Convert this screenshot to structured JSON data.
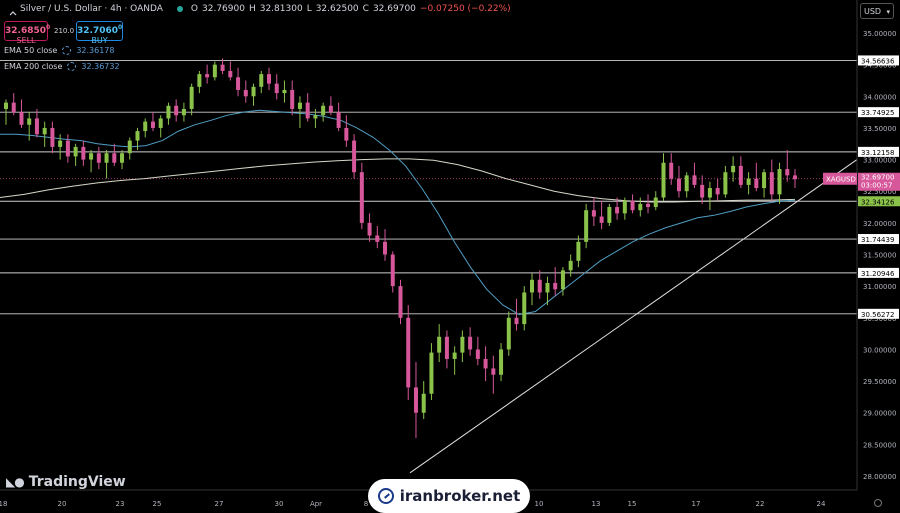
{
  "header": {
    "symbol": "Silver / U.S. Dollar · 4h · OANDA",
    "o_label": "O",
    "o": "32.76900",
    "h_label": "H",
    "h": "32.81300",
    "l_label": "L",
    "l": "32.62500",
    "c_label": "C",
    "c": "32.69700",
    "change": "−0.07250 (−0.22%)"
  },
  "trade": {
    "sell_price": "32.6850",
    "sell_sup": "0",
    "sell_label": "SELL",
    "spread": "210.0",
    "buy_price": "32.7060",
    "buy_sup": "0",
    "buy_label": "BUY"
  },
  "indicators": [
    {
      "label": "EMA 50 close",
      "value": "32.36178"
    },
    {
      "label": "EMA 200 close",
      "value": "32.36732"
    }
  ],
  "currency_select": "USD",
  "logo_text": "TradingView",
  "watermark": "iranbroker.net",
  "colors": {
    "background": "#000000",
    "up": "#8bc34a",
    "down": "#d6589a",
    "ema50": "#4f9ec4",
    "ema200": "#d8d8c8",
    "hline": "#d0d0d0",
    "price_tag": "#d6589a",
    "ema_tag": "#8bc34a"
  },
  "chart_data": {
    "type": "candlestick",
    "symbol": "XAGUSD",
    "timeframe": "4h",
    "ylim": [
      27.8,
      35.4
    ],
    "y_ticks": [
      "35.00000",
      "34.50000",
      "34.00000",
      "33.50000",
      "33.00000",
      "32.50000",
      "32.00000",
      "31.50000",
      "31.00000",
      "30.50000",
      "30.00000",
      "29.50000",
      "29.00000",
      "28.50000",
      "28.00000"
    ],
    "x_ticks": [
      "18",
      "20",
      "23",
      "25",
      "27",
      "30",
      "Apr",
      "8",
      "10",
      "13",
      "15",
      "17",
      "22",
      "24"
    ],
    "horizontal_levels": [
      "34.56636",
      "33.74925",
      "33.12158",
      "31.74439",
      "31.20946",
      "30.56272"
    ],
    "price_label": {
      "symbol": "XAGUSD",
      "value": "32.69700",
      "countdown": "03:00:57"
    },
    "ema_label": "32.34126",
    "candles": [
      [
        33.8,
        33.95,
        33.55,
        33.9
      ],
      [
        33.9,
        34.05,
        33.7,
        33.75
      ],
      [
        33.75,
        33.95,
        33.5,
        33.55
      ],
      [
        33.55,
        33.75,
        33.3,
        33.65
      ],
      [
        33.65,
        33.8,
        33.35,
        33.4
      ],
      [
        33.4,
        33.6,
        33.2,
        33.5
      ],
      [
        33.5,
        33.6,
        33.1,
        33.2
      ],
      [
        33.2,
        33.4,
        33.0,
        33.3
      ],
      [
        33.3,
        33.4,
        32.95,
        33.05
      ],
      [
        33.05,
        33.25,
        32.9,
        33.2
      ],
      [
        33.2,
        33.3,
        32.9,
        33.0
      ],
      [
        33.0,
        33.15,
        32.8,
        33.1
      ],
      [
        33.1,
        33.2,
        32.85,
        32.95
      ],
      [
        32.95,
        33.15,
        32.7,
        33.1
      ],
      [
        33.1,
        33.25,
        32.9,
        32.95
      ],
      [
        32.95,
        33.15,
        32.85,
        33.1
      ],
      [
        33.1,
        33.35,
        33.0,
        33.3
      ],
      [
        33.3,
        33.5,
        33.15,
        33.45
      ],
      [
        33.45,
        33.65,
        33.35,
        33.6
      ],
      [
        33.6,
        33.75,
        33.45,
        33.5
      ],
      [
        33.5,
        33.7,
        33.35,
        33.65
      ],
      [
        33.65,
        33.9,
        33.55,
        33.85
      ],
      [
        33.85,
        33.95,
        33.6,
        33.7
      ],
      [
        33.7,
        33.9,
        33.6,
        33.8
      ],
      [
        33.8,
        34.2,
        33.7,
        34.15
      ],
      [
        34.15,
        34.4,
        34.05,
        34.35
      ],
      [
        34.35,
        34.5,
        34.2,
        34.3
      ],
      [
        34.3,
        34.55,
        34.25,
        34.5
      ],
      [
        34.5,
        34.6,
        34.35,
        34.4
      ],
      [
        34.4,
        34.55,
        34.25,
        34.3
      ],
      [
        34.3,
        34.45,
        34.0,
        34.1
      ],
      [
        34.1,
        34.25,
        33.9,
        34.0
      ],
      [
        34.0,
        34.2,
        33.85,
        34.15
      ],
      [
        34.15,
        34.4,
        34.05,
        34.35
      ],
      [
        34.35,
        34.45,
        34.1,
        34.2
      ],
      [
        34.2,
        34.35,
        33.95,
        34.05
      ],
      [
        34.05,
        34.25,
        33.9,
        34.1
      ],
      [
        34.1,
        34.25,
        33.7,
        33.8
      ],
      [
        33.8,
        34.0,
        33.5,
        33.9
      ],
      [
        33.9,
        34.05,
        33.6,
        33.65
      ],
      [
        33.65,
        33.8,
        33.5,
        33.7
      ],
      [
        33.7,
        33.9,
        33.6,
        33.85
      ],
      [
        33.85,
        34.0,
        33.7,
        33.75
      ],
      [
        33.75,
        33.9,
        33.45,
        33.5
      ],
      [
        33.5,
        33.7,
        33.2,
        33.3
      ],
      [
        33.3,
        33.4,
        32.7,
        32.8
      ],
      [
        32.8,
        32.95,
        31.9,
        32.0
      ],
      [
        32.0,
        32.15,
        31.7,
        31.8
      ],
      [
        31.8,
        31.95,
        31.6,
        31.7
      ],
      [
        31.7,
        31.9,
        31.4,
        31.5
      ],
      [
        31.5,
        31.55,
        30.9,
        31.0
      ],
      [
        31.0,
        31.1,
        30.4,
        30.5
      ],
      [
        30.5,
        30.7,
        29.2,
        29.4
      ],
      [
        29.4,
        29.8,
        28.6,
        29.0
      ],
      [
        29.0,
        29.5,
        28.9,
        29.3
      ],
      [
        29.3,
        30.1,
        29.2,
        29.95
      ],
      [
        29.95,
        30.4,
        29.8,
        30.2
      ],
      [
        30.2,
        30.3,
        29.7,
        29.85
      ],
      [
        29.85,
        30.05,
        29.6,
        29.95
      ],
      [
        29.95,
        30.3,
        29.8,
        30.2
      ],
      [
        30.2,
        30.35,
        29.9,
        30.0
      ],
      [
        30.0,
        30.2,
        29.75,
        29.85
      ],
      [
        29.85,
        30.05,
        29.5,
        29.7
      ],
      [
        29.7,
        29.9,
        29.3,
        29.6
      ],
      [
        29.6,
        30.1,
        29.5,
        30.0
      ],
      [
        30.0,
        30.6,
        29.9,
        30.5
      ],
      [
        30.5,
        30.8,
        30.3,
        30.4
      ],
      [
        30.4,
        31.0,
        30.3,
        30.9
      ],
      [
        30.9,
        31.2,
        30.7,
        31.1
      ],
      [
        31.1,
        31.25,
        30.8,
        30.9
      ],
      [
        30.9,
        31.15,
        30.7,
        31.05
      ],
      [
        31.05,
        31.3,
        30.85,
        30.95
      ],
      [
        30.95,
        31.3,
        30.85,
        31.25
      ],
      [
        31.25,
        31.5,
        31.15,
        31.4
      ],
      [
        31.4,
        31.8,
        31.3,
        31.7
      ],
      [
        31.7,
        32.3,
        31.6,
        32.2
      ],
      [
        32.2,
        32.4,
        31.95,
        32.1
      ],
      [
        32.1,
        32.35,
        31.9,
        32.0
      ],
      [
        32.0,
        32.3,
        31.95,
        32.25
      ],
      [
        32.25,
        32.4,
        32.05,
        32.15
      ],
      [
        32.15,
        32.4,
        32.05,
        32.35
      ],
      [
        32.35,
        32.45,
        32.15,
        32.2
      ],
      [
        32.2,
        32.4,
        32.1,
        32.3
      ],
      [
        32.3,
        32.45,
        32.15,
        32.25
      ],
      [
        32.25,
        32.5,
        32.2,
        32.4
      ],
      [
        32.4,
        33.1,
        32.35,
        32.95
      ],
      [
        32.95,
        33.1,
        32.6,
        32.7
      ],
      [
        32.7,
        32.9,
        32.4,
        32.5
      ],
      [
        32.5,
        32.8,
        32.4,
        32.75
      ],
      [
        32.75,
        32.95,
        32.55,
        32.6
      ],
      [
        32.6,
        32.75,
        32.3,
        32.4
      ],
      [
        32.4,
        32.65,
        32.2,
        32.55
      ],
      [
        32.55,
        32.7,
        32.35,
        32.45
      ],
      [
        32.45,
        32.9,
        32.4,
        32.8
      ],
      [
        32.8,
        33.05,
        32.65,
        32.9
      ],
      [
        32.9,
        33.05,
        32.55,
        32.6
      ],
      [
        32.6,
        32.8,
        32.45,
        32.7
      ],
      [
        32.7,
        32.95,
        32.5,
        32.55
      ],
      [
        32.55,
        32.85,
        32.4,
        32.8
      ],
      [
        32.8,
        33.0,
        32.35,
        32.45
      ],
      [
        32.45,
        32.95,
        32.3,
        32.85
      ],
      [
        32.85,
        33.15,
        32.65,
        32.75
      ],
      [
        32.75,
        32.85,
        32.55,
        32.69
      ]
    ],
    "ema50": [
      33.4,
      33.4,
      33.38,
      33.35,
      33.32,
      33.3,
      33.25,
      33.22,
      33.2,
      33.22,
      33.3,
      33.45,
      33.55,
      33.62,
      33.7,
      33.75,
      33.78,
      33.76,
      33.74,
      33.72,
      33.68,
      33.62,
      33.5,
      33.35,
      33.15,
      32.9,
      32.55,
      32.15,
      31.7,
      31.3,
      30.95,
      30.7,
      30.55,
      30.6,
      30.8,
      31.0,
      31.2,
      31.4,
      31.55,
      31.7,
      31.82,
      31.92,
      32.0,
      32.08,
      32.12,
      32.18,
      32.25,
      32.3,
      32.34,
      32.36
    ],
    "ema200": [
      32.4,
      32.45,
      32.52,
      32.58,
      32.63,
      32.67,
      32.7,
      32.74,
      32.78,
      32.82,
      32.86,
      32.9,
      32.93,
      32.96,
      32.98,
      33.0,
      33.01,
      33.01,
      32.99,
      32.92,
      32.82,
      32.7,
      32.6,
      32.5,
      32.43,
      32.38,
      32.35,
      32.33,
      32.33,
      32.34,
      32.35,
      32.36,
      32.36,
      32.37
    ]
  }
}
